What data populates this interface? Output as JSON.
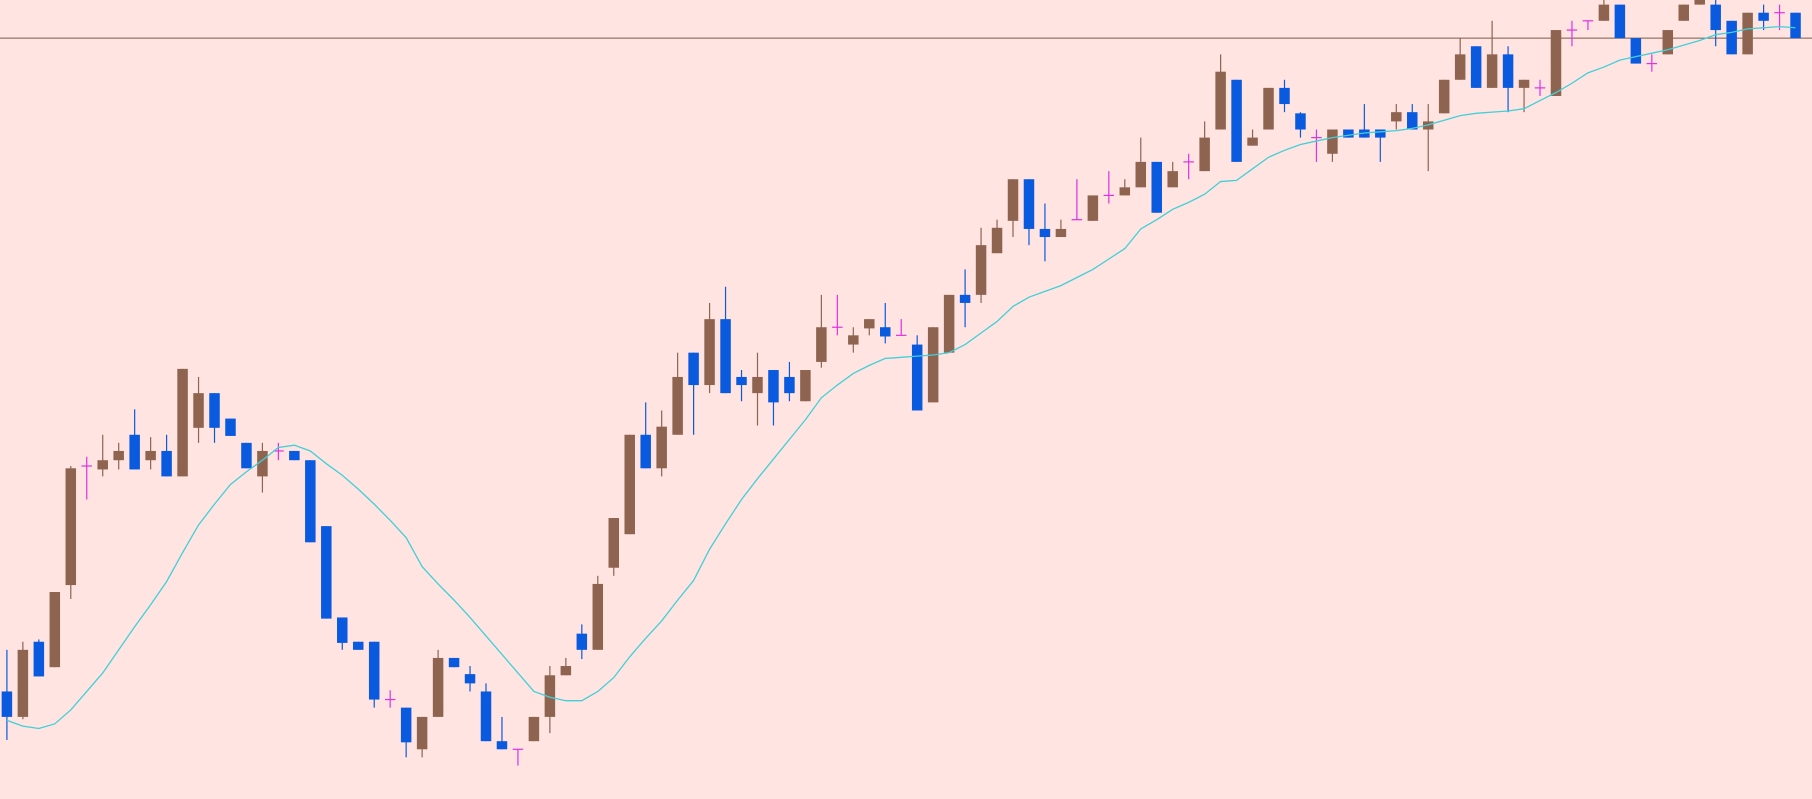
{
  "chart_data": {
    "type": "candlestick",
    "background": "#ffe4e1",
    "up_color": "#8e6450",
    "down_color": "#0a5ae0",
    "doji_color": "#e030e0",
    "ylim": [
      9,
      700
    ],
    "ohlc": [
      [
        102,
        138,
        60,
        80
      ],
      [
        80,
        145,
        78,
        138
      ],
      [
        145,
        147,
        115,
        115
      ],
      [
        123,
        188,
        123,
        188
      ],
      [
        194,
        297,
        182,
        295
      ],
      [
        297,
        305,
        268,
        297
      ],
      [
        294,
        324,
        288,
        302
      ],
      [
        302,
        317,
        294,
        310
      ],
      [
        324,
        346,
        294,
        294
      ],
      [
        302,
        322,
        294,
        310
      ],
      [
        310,
        324,
        288,
        288
      ],
      [
        288,
        381,
        288,
        381
      ],
      [
        330,
        374,
        317,
        360
      ],
      [
        360,
        360,
        317,
        330
      ],
      [
        338,
        338,
        323,
        323
      ],
      [
        317,
        317,
        295,
        295
      ],
      [
        288,
        317,
        274,
        310
      ],
      [
        310,
        317,
        302,
        310
      ],
      [
        310,
        310,
        302,
        302
      ],
      [
        302,
        302,
        231,
        231
      ],
      [
        245,
        245,
        165,
        165
      ],
      [
        166,
        166,
        138,
        144
      ],
      [
        145,
        145,
        138,
        138
      ],
      [
        145,
        145,
        88,
        95
      ],
      [
        95,
        103,
        88,
        95
      ],
      [
        88,
        88,
        45,
        58
      ],
      [
        52,
        80,
        45,
        80
      ],
      [
        80,
        138,
        80,
        131
      ],
      [
        131,
        131,
        123,
        123
      ],
      [
        117,
        124,
        102,
        109
      ],
      [
        102,
        109,
        59,
        59
      ],
      [
        59,
        80,
        52,
        52
      ],
      [
        52,
        52,
        38,
        52
      ],
      [
        59,
        80,
        59,
        80
      ],
      [
        80,
        124,
        66,
        116
      ],
      [
        116,
        131,
        116,
        124
      ],
      [
        152,
        160,
        130,
        138
      ],
      [
        138,
        202,
        138,
        195
      ],
      [
        209,
        252,
        202,
        252
      ],
      [
        238,
        324,
        238,
        324
      ],
      [
        324,
        352,
        295,
        295
      ],
      [
        295,
        345,
        288,
        331
      ],
      [
        324,
        395,
        324,
        374
      ],
      [
        395,
        395,
        324,
        367
      ],
      [
        367,
        438,
        360,
        424
      ],
      [
        424,
        452,
        360,
        360
      ],
      [
        374,
        380,
        353,
        367
      ],
      [
        360,
        395,
        332,
        374
      ],
      [
        380,
        380,
        332,
        352
      ],
      [
        374,
        387,
        353,
        360
      ],
      [
        353,
        380,
        353,
        380
      ],
      [
        387,
        445,
        382,
        417
      ],
      [
        417,
        445,
        410,
        417
      ],
      [
        402,
        417,
        395,
        410
      ],
      [
        416,
        424,
        410,
        424
      ],
      [
        417,
        438,
        403,
        409
      ],
      [
        410,
        424,
        410,
        410
      ],
      [
        402,
        410,
        345,
        345
      ],
      [
        352,
        417,
        352,
        417
      ],
      [
        395,
        445,
        395,
        445
      ],
      [
        445,
        467,
        417,
        438
      ],
      [
        445,
        503,
        438,
        488
      ],
      [
        481,
        510,
        481,
        503
      ],
      [
        509,
        545,
        495,
        545
      ],
      [
        545,
        545,
        488,
        502
      ],
      [
        502,
        524,
        474,
        495
      ],
      [
        495,
        510,
        495,
        502
      ],
      [
        510,
        545,
        510,
        510
      ],
      [
        509,
        531,
        509,
        531
      ],
      [
        531,
        552,
        524,
        531
      ],
      [
        531,
        545,
        531,
        538
      ],
      [
        538,
        581,
        538,
        560
      ],
      [
        560,
        560,
        516,
        516
      ],
      [
        538,
        560,
        538,
        552
      ],
      [
        560,
        567,
        545,
        560
      ],
      [
        552,
        595,
        552,
        581
      ],
      [
        588,
        653,
        588,
        638
      ],
      [
        631,
        631,
        560,
        560
      ],
      [
        574,
        588,
        574,
        581
      ],
      [
        588,
        624,
        588,
        624
      ],
      [
        624,
        631,
        603,
        610
      ],
      [
        602,
        603,
        581,
        588
      ],
      [
        581,
        588,
        560,
        581
      ],
      [
        567,
        588,
        560,
        588
      ],
      [
        588,
        588,
        581,
        581
      ],
      [
        588,
        610,
        581,
        581
      ],
      [
        588,
        588,
        560,
        581
      ],
      [
        595,
        610,
        588,
        603
      ],
      [
        603,
        610,
        588,
        588
      ],
      [
        588,
        610,
        552,
        595
      ],
      [
        602,
        631,
        602,
        631
      ],
      [
        631,
        667,
        631,
        653
      ],
      [
        660,
        660,
        624,
        624
      ],
      [
        624,
        682,
        624,
        653
      ],
      [
        653,
        660,
        603,
        624
      ],
      [
        624,
        631,
        603,
        631
      ],
      [
        624,
        631,
        617,
        624
      ],
      [
        617,
        674,
        617,
        674
      ],
      [
        674,
        682,
        660,
        674
      ],
      [
        682,
        682,
        674,
        682
      ],
      [
        682,
        700,
        682,
        696
      ],
      [
        696,
        696,
        667,
        667
      ],
      [
        667,
        667,
        645,
        645
      ],
      [
        645,
        653,
        638,
        645
      ],
      [
        653,
        674,
        653,
        674
      ],
      [
        682,
        696,
        682,
        696
      ],
      [
        696,
        700,
        696,
        700
      ],
      [
        696,
        700,
        660,
        674
      ],
      [
        682,
        682,
        653,
        653
      ],
      [
        653,
        689,
        653,
        689
      ],
      [
        689,
        696,
        674,
        682
      ],
      [
        689,
        696,
        674,
        689
      ],
      [
        689,
        689,
        667,
        667
      ]
    ],
    "ma": {
      "color": "#40d0d8",
      "values": [
        77,
        72,
        70,
        74,
        86,
        102,
        118,
        138,
        158,
        177,
        197,
        222,
        246,
        264,
        281,
        292,
        302,
        313,
        315,
        310,
        299,
        289,
        277,
        264,
        250,
        235,
        210,
        195,
        181,
        166,
        150,
        134,
        118,
        102,
        97,
        94,
        94,
        102,
        114,
        132,
        148,
        163,
        181,
        198,
        225,
        247,
        268,
        286,
        303,
        320,
        337,
        356,
        367,
        377,
        384,
        390,
        391,
        392,
        393,
        395,
        402,
        412,
        422,
        435,
        443,
        448,
        453,
        460,
        467,
        476,
        485,
        502,
        510,
        519,
        525,
        532,
        543,
        544,
        554,
        564,
        570,
        575,
        578,
        581,
        583,
        585,
        586,
        587,
        589,
        592,
        596,
        600,
        602,
        603,
        604,
        606,
        613,
        620,
        628,
        637,
        642,
        648,
        651,
        654,
        657,
        661,
        665,
        670,
        672,
        675,
        676,
        677,
        676
      ]
    },
    "hline": {
      "value": 667,
      "color": "#7a5a4a"
    }
  }
}
